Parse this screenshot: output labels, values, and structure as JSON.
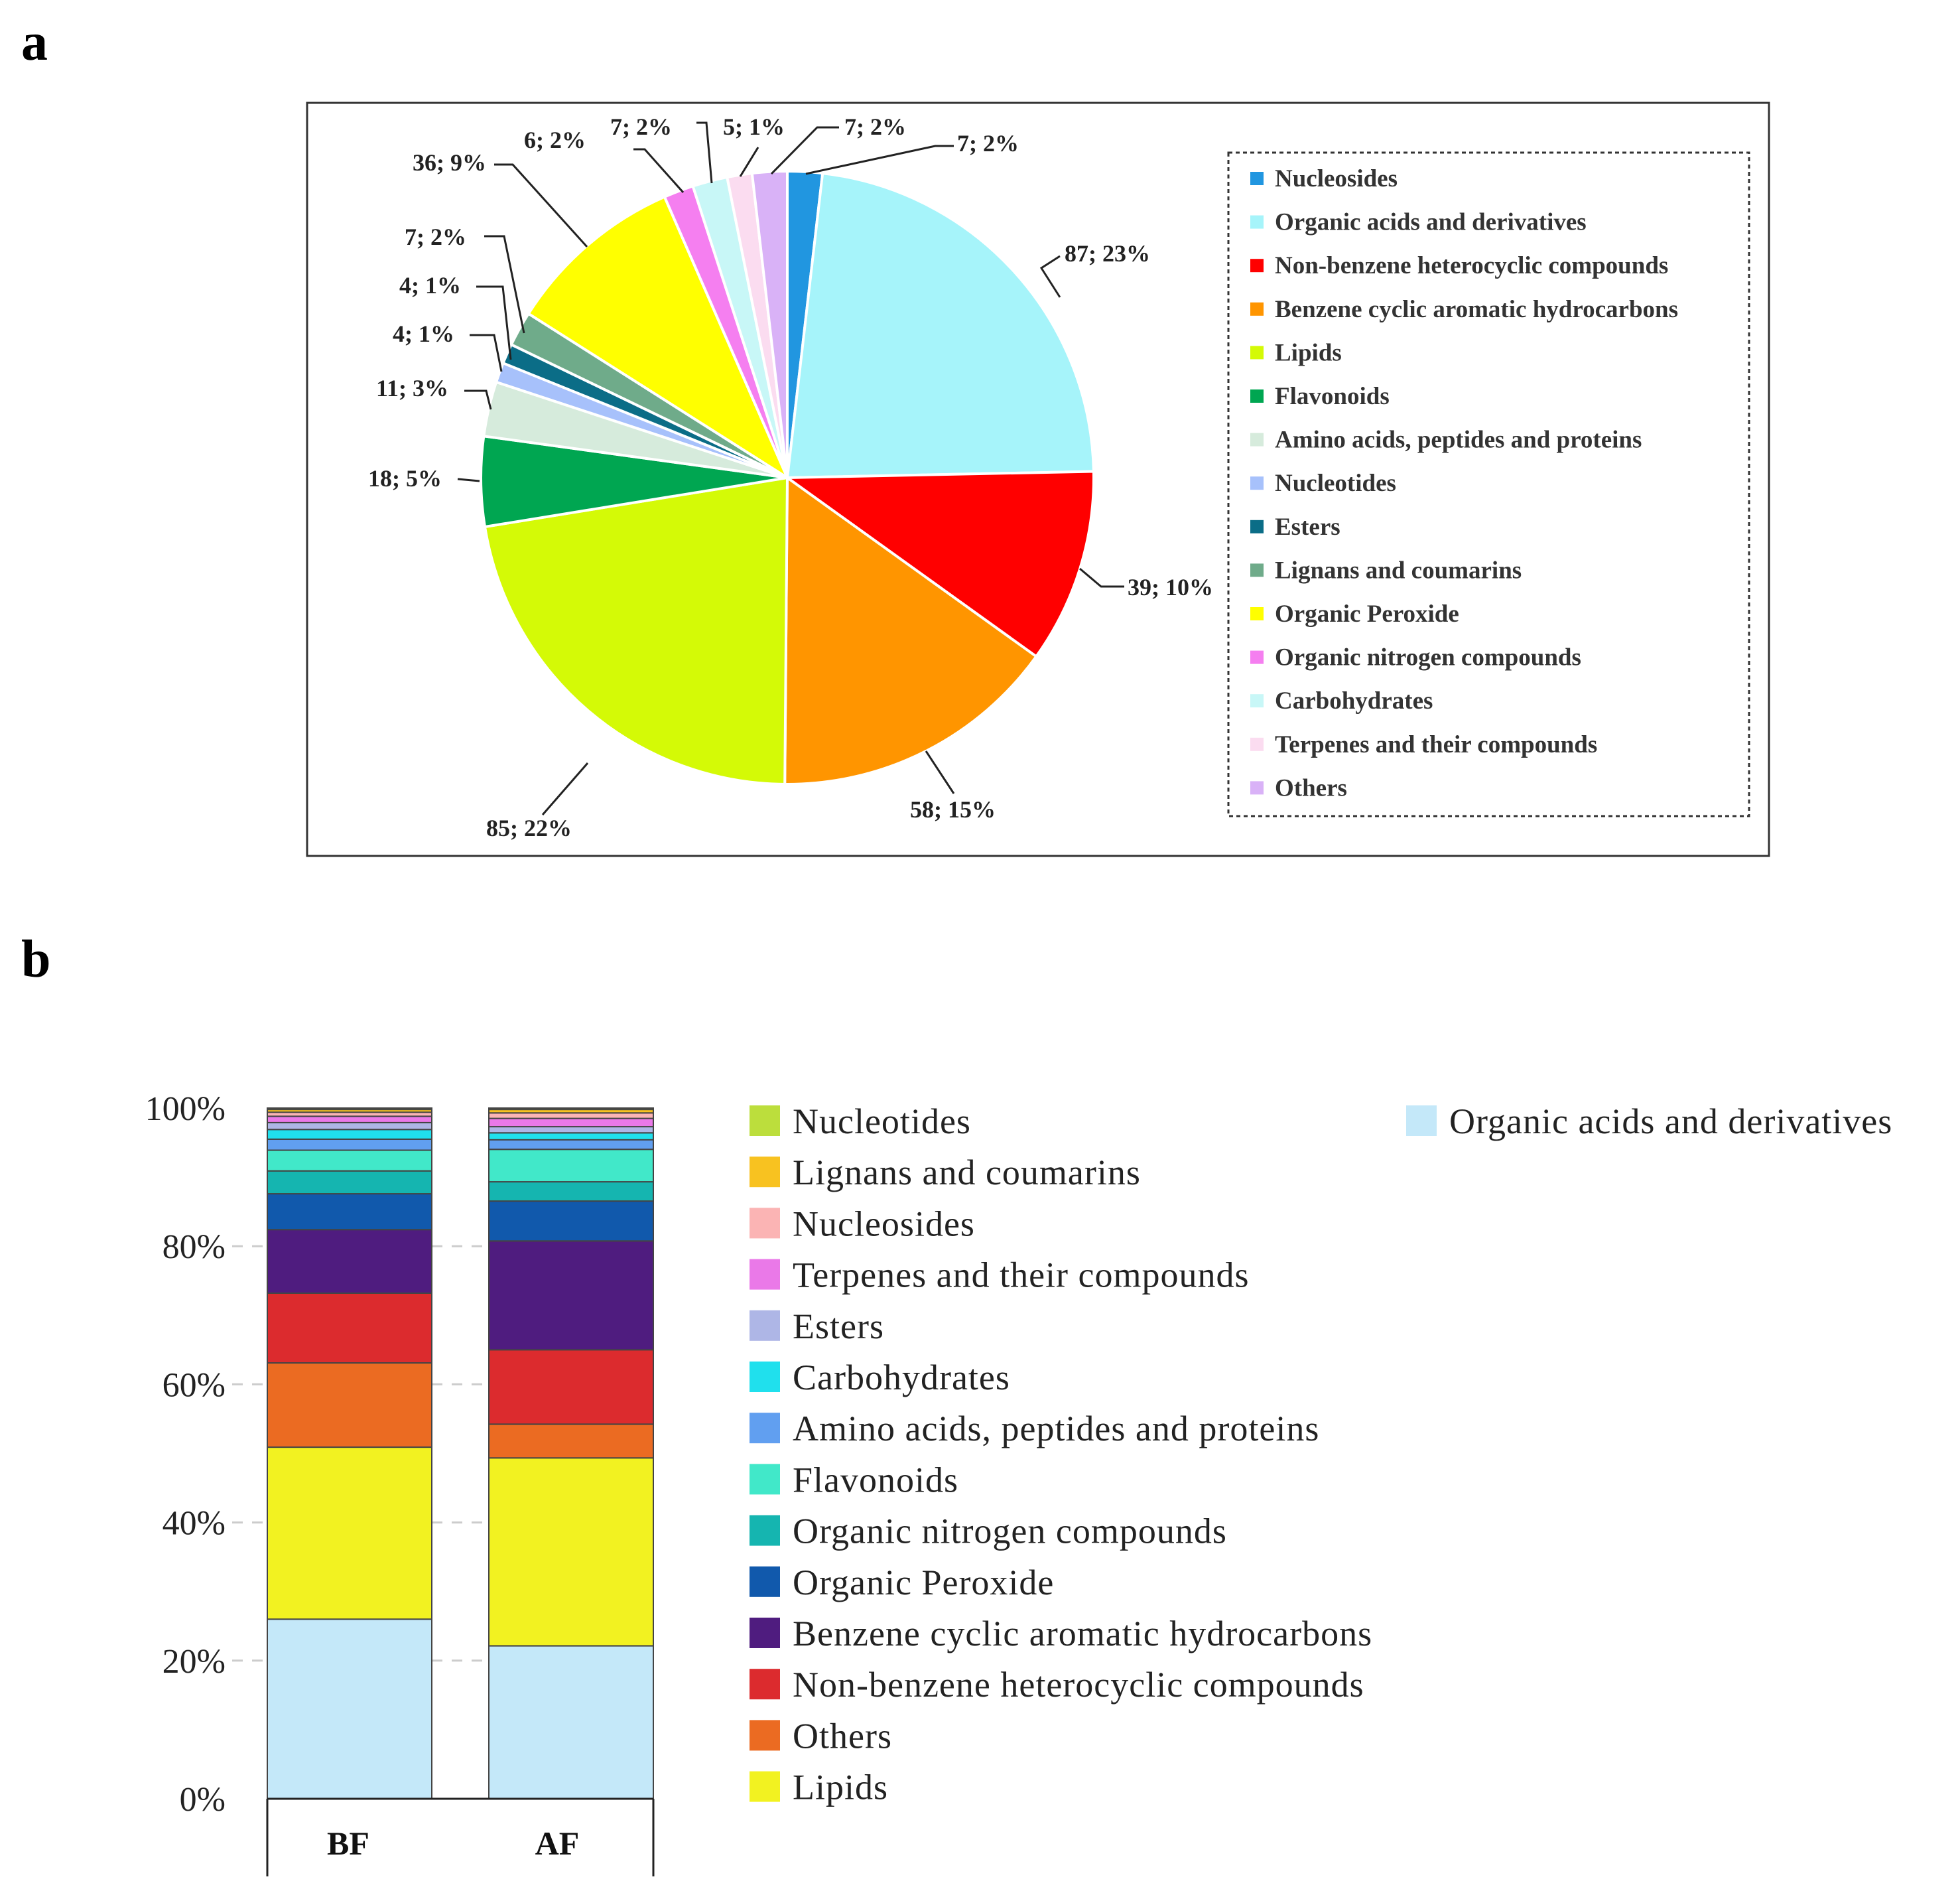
{
  "panels": {
    "a_label": "a",
    "b_label": "b"
  },
  "chart_data": [
    {
      "type": "pie",
      "panel": "a",
      "start": "top",
      "direction": "clockwise",
      "slices": [
        {
          "name": "Nucleosides",
          "count": 7,
          "label": "7; 2%",
          "color": "#2196e0"
        },
        {
          "name": "Organic acids and derivatives",
          "count": 87,
          "label": "87; 23%",
          "color": "#a6f4fa"
        },
        {
          "name": "Non-benzene heterocyclic compounds",
          "count": 39,
          "label": "39; 10%",
          "color": "#ff0000"
        },
        {
          "name": "Benzene cyclic aromatic hydrocarbons",
          "count": 58,
          "label": "58; 15%",
          "color": "#ff9500"
        },
        {
          "name": "Lipids",
          "count": 85,
          "label": "85; 22%",
          "color": "#d4fa06"
        },
        {
          "name": "Flavonoids",
          "count": 18,
          "label": "18; 5%",
          "color": "#00a651"
        },
        {
          "name": "Amino acids, peptides and proteins",
          "count": 11,
          "label": "11; 3%",
          "color": "#d6ebdc"
        },
        {
          "name": "Nucleotides",
          "count": 4,
          "label": "4; 1%",
          "color": "#a7c1fb"
        },
        {
          "name": "Esters",
          "count": 4,
          "label": "4; 1%",
          "color": "#0b6d87"
        },
        {
          "name": "Lignans and coumarins",
          "count": 7,
          "label": "7; 2%",
          "color": "#6fab8a"
        },
        {
          "name": "Organic Peroxide",
          "count": 36,
          "label": "36; 9%",
          "color": "#ffff00"
        },
        {
          "name": "Organic nitrogen compounds",
          "count": 6,
          "label": "6; 2%",
          "color": "#f57ff0"
        },
        {
          "name": "Carbohydrates",
          "count": 7,
          "label": "7; 2%",
          "color": "#c8f7f7"
        },
        {
          "name": "Terpenes and their compounds",
          "count": 5,
          "label": "5; 1%",
          "color": "#fbdcf0"
        },
        {
          "name": "Others",
          "count": 7,
          "label": "7; 2%",
          "color": "#d9b2f7"
        }
      ],
      "legend": [
        "Nucleosides",
        "Organic acids and derivatives",
        "Non-benzene heterocyclic compounds",
        "Benzene cyclic aromatic hydrocarbons",
        "Lipids",
        "Flavonoids",
        "Amino acids, peptides and proteins",
        "Nucleotides",
        "Esters",
        "Lignans and coumarins",
        "Organic Peroxide",
        "Organic nitrogen compounds",
        "Carbohydrates",
        "Terpenes and their compounds",
        "Others"
      ],
      "legend_position": "right"
    },
    {
      "type": "stacked-bar",
      "panel": "b",
      "categories": [
        "BF",
        "AF"
      ],
      "ylim": [
        0,
        100
      ],
      "yticks": [
        "0%",
        "20%",
        "40%",
        "60%",
        "80%",
        "100%"
      ],
      "series": [
        {
          "name": "Organic acids and derivatives",
          "color": "#c4e8f9",
          "values": [
            26.0,
            22.2
          ]
        },
        {
          "name": "Lipids",
          "color": "#f2f221",
          "values": [
            24.9,
            27.3
          ]
        },
        {
          "name": "Others",
          "color": "#eb6b22",
          "values": [
            12.2,
            4.9
          ]
        },
        {
          "name": "Non-benzene heterocyclic compounds",
          "color": "#dc2b2e",
          "values": [
            10.1,
            10.8
          ]
        },
        {
          "name": "Benzene cyclic aromatic hydrocarbons",
          "color": "#4f1c7f",
          "values": [
            9.2,
            15.8
          ]
        },
        {
          "name": "Organic Peroxide",
          "color": "#1159ac",
          "values": [
            5.2,
            5.8
          ]
        },
        {
          "name": "Organic nitrogen compounds",
          "color": "#15b5b0",
          "values": [
            3.3,
            2.8
          ]
        },
        {
          "name": "Flavonoids",
          "color": "#41e8c9",
          "values": [
            3.0,
            4.7
          ]
        },
        {
          "name": "Amino acids, peptides and proteins",
          "color": "#619ff0",
          "values": [
            1.6,
            1.4
          ]
        },
        {
          "name": "Carbohydrates",
          "color": "#20e0ed",
          "values": [
            1.4,
            1.0
          ]
        },
        {
          "name": "Esters",
          "color": "#aeb6e6",
          "values": [
            1.0,
            0.9
          ]
        },
        {
          "name": "Terpenes and their compounds",
          "color": "#ea79e8",
          "values": [
            0.9,
            1.2
          ]
        },
        {
          "name": "Nucleosides",
          "color": "#fbb4b4",
          "values": [
            0.6,
            0.8
          ]
        },
        {
          "name": "Lignans and coumarins",
          "color": "#f8c220",
          "values": [
            0.4,
            0.5
          ]
        },
        {
          "name": "Nucleotides",
          "color": "#bcde3c",
          "values": [
            0.2,
            0.2
          ]
        }
      ],
      "legend": [
        "Nucleotides",
        "Lignans and coumarins",
        "Nucleosides",
        "Terpenes and their compounds",
        "Esters",
        "Carbohydrates",
        "Amino acids, peptides and proteins",
        "Flavonoids",
        "Organic nitrogen compounds",
        "Organic Peroxide",
        "Benzene cyclic aromatic hydrocarbons",
        "Non-benzene heterocyclic compounds",
        "Others",
        "Lipids",
        "Organic acids and derivatives"
      ],
      "legend_position": "right"
    }
  ]
}
